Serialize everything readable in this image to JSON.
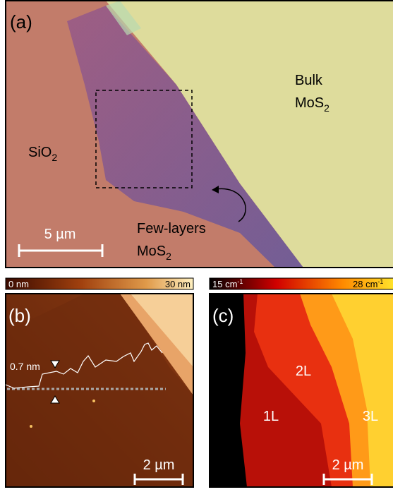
{
  "panel_a": {
    "label": "(a)",
    "bulk": {
      "line1": "Bulk",
      "formula": "MoS",
      "subscript": "2"
    },
    "substrate": {
      "formula": "SiO",
      "subscript": "2"
    },
    "few_layers": {
      "line1": "Few-layers",
      "formula": "MoS",
      "subscript": "2"
    },
    "scale_bar": "5 µm"
  },
  "panel_b": {
    "label": "(b)",
    "colorbar": {
      "min": "0 nm",
      "max": "30 nm"
    },
    "step_height": "0.7 nm",
    "scale_bar": "2 µm"
  },
  "panel_c": {
    "label": "(c)",
    "colorbar": {
      "min": {
        "text": "15 cm",
        "superscript": "-1"
      },
      "max": {
        "text": "28 cm",
        "superscript": "-1"
      }
    },
    "regions": [
      "2L",
      "1L",
      "3L"
    ],
    "scale_bar": "2 µm"
  }
}
